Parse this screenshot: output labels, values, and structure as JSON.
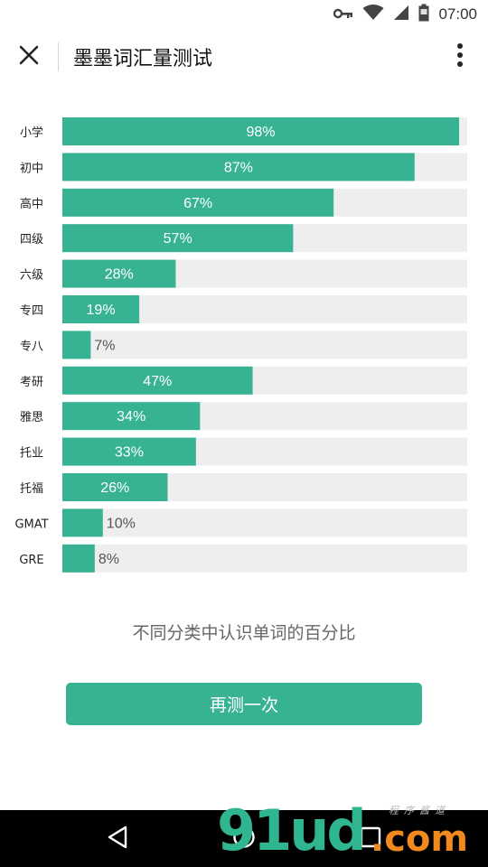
{
  "status_bar": {
    "time": "07:00",
    "icons": [
      "key-icon",
      "wifi-icon",
      "signal-icon",
      "battery-icon"
    ]
  },
  "app_bar": {
    "title": "墨墨词汇量测试",
    "close_icon": "close-icon",
    "menu_icon": "more-vertical-icon"
  },
  "chart_data": {
    "type": "bar",
    "orientation": "horizontal",
    "categories": [
      "小学",
      "初中",
      "高中",
      "四级",
      "六级",
      "专四",
      "专八",
      "考研",
      "雅思",
      "托业",
      "托福",
      "GMAT",
      "GRE"
    ],
    "values": [
      98,
      87,
      67,
      57,
      28,
      19,
      7,
      47,
      34,
      33,
      26,
      10,
      8
    ],
    "value_labels": [
      "98%",
      "87%",
      "67%",
      "57%",
      "28%",
      "19%",
      "7%",
      "47%",
      "34%",
      "33%",
      "26%",
      "10%",
      "8%"
    ],
    "xlim": [
      0,
      100
    ],
    "unit": "%",
    "bar_color": "#37b394",
    "track_color": "#eeeeee",
    "grid": false,
    "legend": "none"
  },
  "caption": "不同分类中认识单词的百分比",
  "retest_button": {
    "label": "再测一次"
  },
  "nav_bar": {
    "icons": [
      "back-triangle-icon",
      "home-circle-icon",
      "recents-square-icon"
    ]
  },
  "watermark": {
    "main": "91ud",
    "suffix": ".com",
    "sub": "程序酱道"
  },
  "colors": {
    "accent": "#37b394",
    "watermark_green": "#2fb58f",
    "watermark_orange": "#f08a1e",
    "nav_bg": "#000000"
  }
}
